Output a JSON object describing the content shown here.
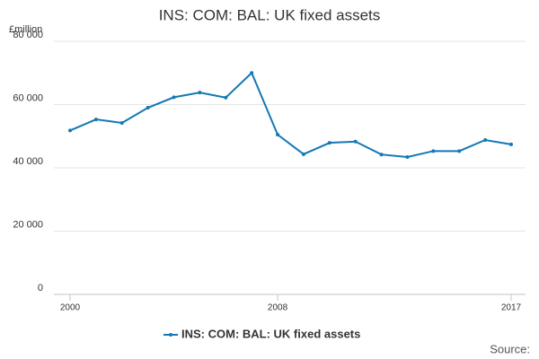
{
  "chart_data": {
    "type": "line",
    "title": "INS: COM: BAL: UK fixed assets",
    "y_unit_label": "£million",
    "source_label": "Source:",
    "x": [
      2000,
      2001,
      2002,
      2003,
      2004,
      2005,
      2006,
      2007,
      2008,
      2009,
      2010,
      2011,
      2012,
      2013,
      2014,
      2015,
      2016,
      2017
    ],
    "series": [
      {
        "name": "INS: COM: BAL: UK fixed assets",
        "color": "#1478b4",
        "values": [
          51800,
          55300,
          54200,
          59000,
          62300,
          63800,
          62200,
          70000,
          50500,
          44300,
          47900,
          48300,
          44200,
          43400,
          45300,
          45300,
          48800,
          47400
        ]
      }
    ],
    "xlim": [
      2000,
      2017
    ],
    "xticks": [
      2000,
      2008,
      2017
    ],
    "ylim": [
      0,
      80000
    ],
    "yticks": [
      {
        "value": 0,
        "label": "0"
      },
      {
        "value": 20000,
        "label": "20 000"
      },
      {
        "value": 40000,
        "label": "40 000"
      },
      {
        "value": 60000,
        "label": "60 000"
      },
      {
        "value": 80000,
        "label": "80 000"
      }
    ],
    "grid": true,
    "legend": "bottom"
  }
}
